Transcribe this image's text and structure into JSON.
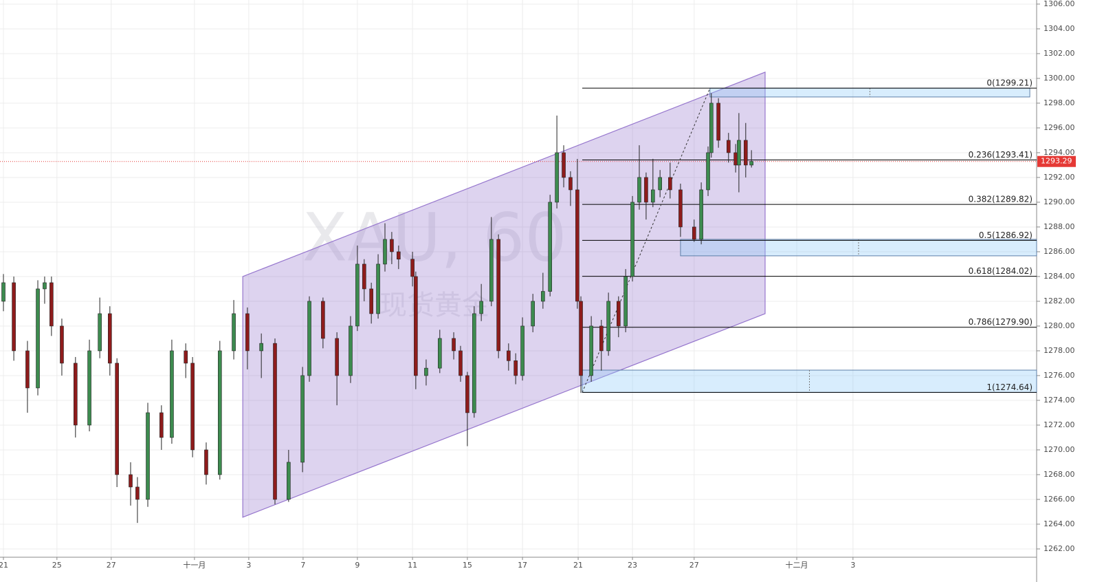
{
  "chart_data": {
    "type": "candlestick",
    "watermark": "XAU, 60",
    "watermark_subtitle": "现货黄金",
    "up_color": "#3d8b4f",
    "down_color": "#8e1c1c",
    "x": [
      0,
      0.38,
      0.88,
      1.26,
      1.51,
      1.76,
      2.14,
      2.64,
      3.15,
      3.53,
      3.9,
      4.16,
      4.66,
      4.91,
      5.29,
      5.79,
      6.17,
      6.68,
      6.93,
      7.43,
      7.93,
      8.44,
      8.94,
      9.45,
      9.95,
      10.45,
      10.96,
      11.21,
      11.71,
      12.22,
      12.72,
      12.97,
      13.22,
      13.48,
      13.73,
      13.98,
      14.23,
      14.48,
      14.99,
      15.11,
      15.49,
      15.99,
      16.5,
      16.75,
      17,
      17.25,
      17.51,
      17.88,
      18.14,
      18.51,
      18.77,
      19.02,
      19.4,
      19.77,
      20.03,
      20.28,
      20.53,
      20.78,
      21.03,
      21.16,
      21.54,
      21.91,
      22.17,
      22.54,
      22.8,
      23.05,
      23.3,
      23.55,
      23.8,
      24.06,
      24.43,
      24.81,
      25.31,
      25.57,
      25.82,
      25.94,
      26.2,
      26.57,
      26.83,
      26.95,
      27.2,
      27.41
    ],
    "open": [
      1282,
      1283.5,
      1278,
      1275,
      1283,
      1283.5,
      1280,
      1277,
      1272,
      1278,
      1281,
      1277,
      1268,
      1267,
      1266,
      1273,
      1271,
      1278,
      1277,
      1270,
      1268,
      1278,
      1281,
      1278,
      1278.6,
      1266,
      1269,
      1276,
      1282,
      1279,
      1276,
      1280,
      1285,
      1283,
      1281,
      1285,
      1287,
      1286,
      1285.4,
      1284,
      1276,
      1276.6,
      1279,
      1278,
      1276,
      1273,
      1281,
      1282,
      1287,
      1278,
      1277.2,
      1276,
      1280,
      1282,
      1282.8,
      1290,
      1294,
      1292,
      1291,
      1282,
      1276,
      1280,
      1278,
      1282,
      1280,
      1284,
      1290,
      1292,
      1290,
      1291,
      1292,
      1291,
      1288,
      1287,
      1291,
      1294,
      1298,
      1295,
      1294,
      1293,
      1295,
      1293
    ],
    "high": [
      1284.2,
      1284,
      1278.8,
      1283.7,
      1284,
      1284,
      1280.6,
      1277.5,
      1278.9,
      1282.3,
      1281.6,
      1277.4,
      1269,
      1267.8,
      1273.8,
      1273.6,
      1278.9,
      1278.6,
      1277.5,
      1270.6,
      1278.8,
      1282.1,
      1281.5,
      1279.4,
      1279,
      1270,
      1276.7,
      1282.4,
      1282.3,
      1279.5,
      1280.8,
      1286.5,
      1285.4,
      1283.5,
      1285.8,
      1288.3,
      1287.6,
      1286.5,
      1286,
      1284.4,
      1277.3,
      1279.7,
      1279.5,
      1278.4,
      1276.3,
      1281.6,
      1283.4,
      1288.8,
      1287.4,
      1278.6,
      1277.8,
      1280.7,
      1282.6,
      1284.3,
      1290.6,
      1297,
      1294.6,
      1292.5,
      1293.5,
      1282.4,
      1280.8,
      1280.5,
      1282.7,
      1282.4,
      1284.6,
      1290.5,
      1294.6,
      1292.4,
      1293.5,
      1292.6,
      1293.2,
      1291.5,
      1288.6,
      1291.6,
      1294.5,
      1298.8,
      1298.4,
      1295.6,
      1294.7,
      1297.2,
      1296.4,
      1294.2
    ],
    "low": [
      1281.2,
      1277.2,
      1273,
      1274.4,
      1281.8,
      1279.2,
      1276,
      1271,
      1271.5,
      1277.4,
      1276,
      1267,
      1265.5,
      1264.1,
      1265.4,
      1270,
      1270.5,
      1275.8,
      1269.4,
      1267.2,
      1267.6,
      1277.3,
      1276.5,
      1275.8,
      1265.6,
      1265.8,
      1268.2,
      1275.5,
      1278.2,
      1273.6,
      1275.4,
      1279.6,
      1282,
      1280.2,
      1280.6,
      1284.4,
      1285,
      1284.6,
      1283.2,
      1274.9,
      1275.2,
      1276.2,
      1277.3,
      1275.5,
      1270.3,
      1272.6,
      1280.4,
      1281.6,
      1277.4,
      1276.4,
      1275.3,
      1275.6,
      1279.5,
      1281.4,
      1282.4,
      1289.5,
      1291.2,
      1289.7,
      1281.4,
      1274.6,
      1275.5,
      1276.4,
      1277.6,
      1279.1,
      1279.5,
      1283.6,
      1289.4,
      1288.6,
      1289.6,
      1290.4,
      1290.3,
      1287.2,
      1286.8,
      1286.6,
      1290.5,
      1293.6,
      1294.4,
      1293.2,
      1292.4,
      1290.8,
      1292,
      1292.8
    ],
    "close": [
      1283.5,
      1278,
      1275,
      1283,
      1283.5,
      1280,
      1277,
      1272,
      1278,
      1281,
      1277,
      1268,
      1267,
      1266,
      1273,
      1271,
      1278,
      1277,
      1270,
      1268,
      1278,
      1281,
      1278,
      1278.6,
      1266,
      1269,
      1276,
      1282,
      1279,
      1276,
      1280,
      1285,
      1283,
      1281,
      1285,
      1287,
      1286,
      1285.4,
      1284,
      1276,
      1276.6,
      1279,
      1278,
      1276,
      1273,
      1281,
      1282,
      1287,
      1278,
      1277.2,
      1276,
      1280,
      1282,
      1282.8,
      1290,
      1294,
      1292,
      1291,
      1282,
      1276,
      1280,
      1278,
      1282,
      1280,
      1284,
      1290,
      1292,
      1290,
      1291,
      1292,
      1291,
      1288,
      1287,
      1291,
      1294,
      1298,
      1295,
      1294,
      1293,
      1295,
      1293,
      1293.3
    ],
    "xlim": [
      -0.126,
      37.86
    ],
    "xticks": [
      {
        "value": 0,
        "label": "21"
      },
      {
        "value": 1.96,
        "label": "25"
      },
      {
        "value": 3.95,
        "label": "27"
      },
      {
        "value": 7.0,
        "label": "十一月"
      },
      {
        "value": 8.99,
        "label": "3"
      },
      {
        "value": 10.98,
        "label": "7"
      },
      {
        "value": 12.97,
        "label": "9"
      },
      {
        "value": 14.99,
        "label": "11"
      },
      {
        "value": 17.0,
        "label": "15"
      },
      {
        "value": 19.02,
        "label": "17"
      },
      {
        "value": 21.06,
        "label": "21"
      },
      {
        "value": 23.05,
        "label": "23"
      },
      {
        "value": 25.31,
        "label": "27"
      },
      {
        "value": 29.07,
        "label": "十二月"
      },
      {
        "value": 31.13,
        "label": "3"
      }
    ],
    "ylim": [
      1261.33,
      1306.33
    ],
    "yticks": [
      {
        "value": 1262,
        "label": "1262.00"
      },
      {
        "value": 1264,
        "label": "1264.00"
      },
      {
        "value": 1266,
        "label": "1266.00"
      },
      {
        "value": 1268,
        "label": "1268.00"
      },
      {
        "value": 1270,
        "label": "1270.00"
      },
      {
        "value": 1272,
        "label": "1272.00"
      },
      {
        "value": 1274,
        "label": "1274.00"
      },
      {
        "value": 1276,
        "label": "1276.00"
      },
      {
        "value": 1278,
        "label": "1278.00"
      },
      {
        "value": 1280,
        "label": "1280.00"
      },
      {
        "value": 1282,
        "label": "1282.00"
      },
      {
        "value": 1284,
        "label": "1284.00"
      },
      {
        "value": 1286,
        "label": "1286.00"
      },
      {
        "value": 1288,
        "label": "1288.00"
      },
      {
        "value": 1290,
        "label": "1290.00"
      },
      {
        "value": 1292,
        "label": "1292.00"
      },
      {
        "value": 1294,
        "label": "1294.00"
      },
      {
        "value": 1296,
        "label": "1296.00"
      },
      {
        "value": 1298,
        "label": "1298.00"
      },
      {
        "value": 1300,
        "label": "1300.00"
      },
      {
        "value": 1302,
        "label": "1302.00"
      },
      {
        "value": 1304,
        "label": "1304.00"
      },
      {
        "value": 1306,
        "label": "1306.00"
      }
    ],
    "grid": true,
    "last_price": 1293.29,
    "last_price_color": "#e53935",
    "channel": {
      "x": [
        8.77,
        27.91
      ],
      "upper": [
        1284.0,
        1300.5
      ],
      "lower": [
        1264.56,
        1281.0
      ],
      "color": "#9575cd"
    },
    "fib": {
      "x_start": 21.21,
      "color": "#000000",
      "levels": [
        {
          "value": 1299.21,
          "label": "0(1299.21)"
        },
        {
          "value": 1293.41,
          "label": "0.236(1293.41)"
        },
        {
          "value": 1289.82,
          "label": "0.382(1289.82)"
        },
        {
          "value": 1286.92,
          "label": "0.5(1286.92)"
        },
        {
          "value": 1284.02,
          "label": "0.618(1284.02)"
        },
        {
          "value": 1279.9,
          "label": "0.786(1279.90)"
        },
        {
          "value": 1274.64,
          "label": "1(1274.64)"
        }
      ]
    },
    "trend_line": {
      "x": [
        21.21,
        25.89
      ],
      "y": [
        1274.64,
        1299.21
      ]
    },
    "zones": [
      {
        "x": [
          25.89,
          37.61
        ],
        "y": [
          1299.21,
          1298.5
        ]
      },
      {
        "x": [
          24.81,
          37.86
        ],
        "y": [
          1287.0,
          1285.67
        ]
      },
      {
        "x": [
          21.21,
          37.86
        ],
        "y": [
          1276.44,
          1274.64
        ]
      }
    ],
    "zone_color": "#90caf9"
  }
}
